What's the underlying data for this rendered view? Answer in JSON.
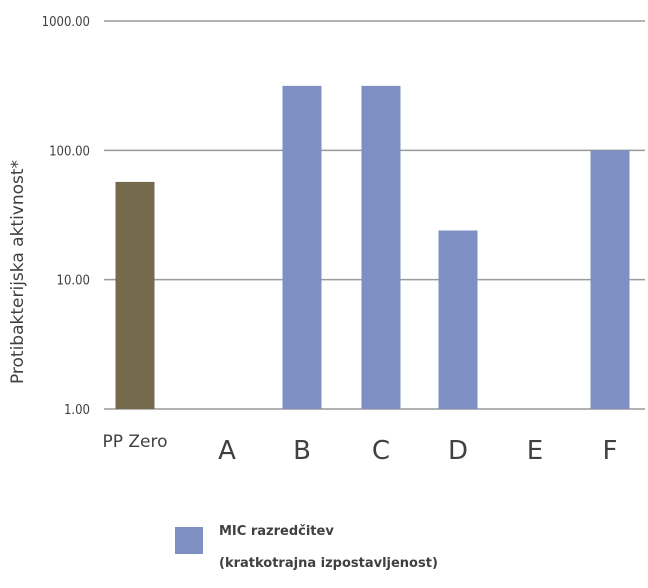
{
  "chart_data": {
    "type": "bar",
    "yscale": "log",
    "ylim": [
      1,
      1000
    ],
    "yticks": [
      "1.00",
      "10.00",
      "100.00",
      "1000.00"
    ],
    "ylabel": "Protibakterijska aktivnost*",
    "xlabel": "",
    "title": "",
    "categories": [
      "PP Zero",
      "A",
      "B",
      "C",
      "D",
      "E",
      "F"
    ],
    "values": [
      57,
      null,
      315,
      315,
      24,
      null,
      100
    ],
    "bar_colors": [
      "#766a4c",
      "#7e8fc3",
      "#7e8fc3",
      "#7e8fc3",
      "#7e8fc3",
      "#7e8fc3",
      "#7e8fc3"
    ],
    "legend": [
      {
        "label_line1": "MIC razredčitev",
        "label_line2": "(kratkotrajna izpostavljenost)",
        "color": "#7e8fc3"
      }
    ],
    "grid": true,
    "gridline_color": "#9a9a9a"
  }
}
